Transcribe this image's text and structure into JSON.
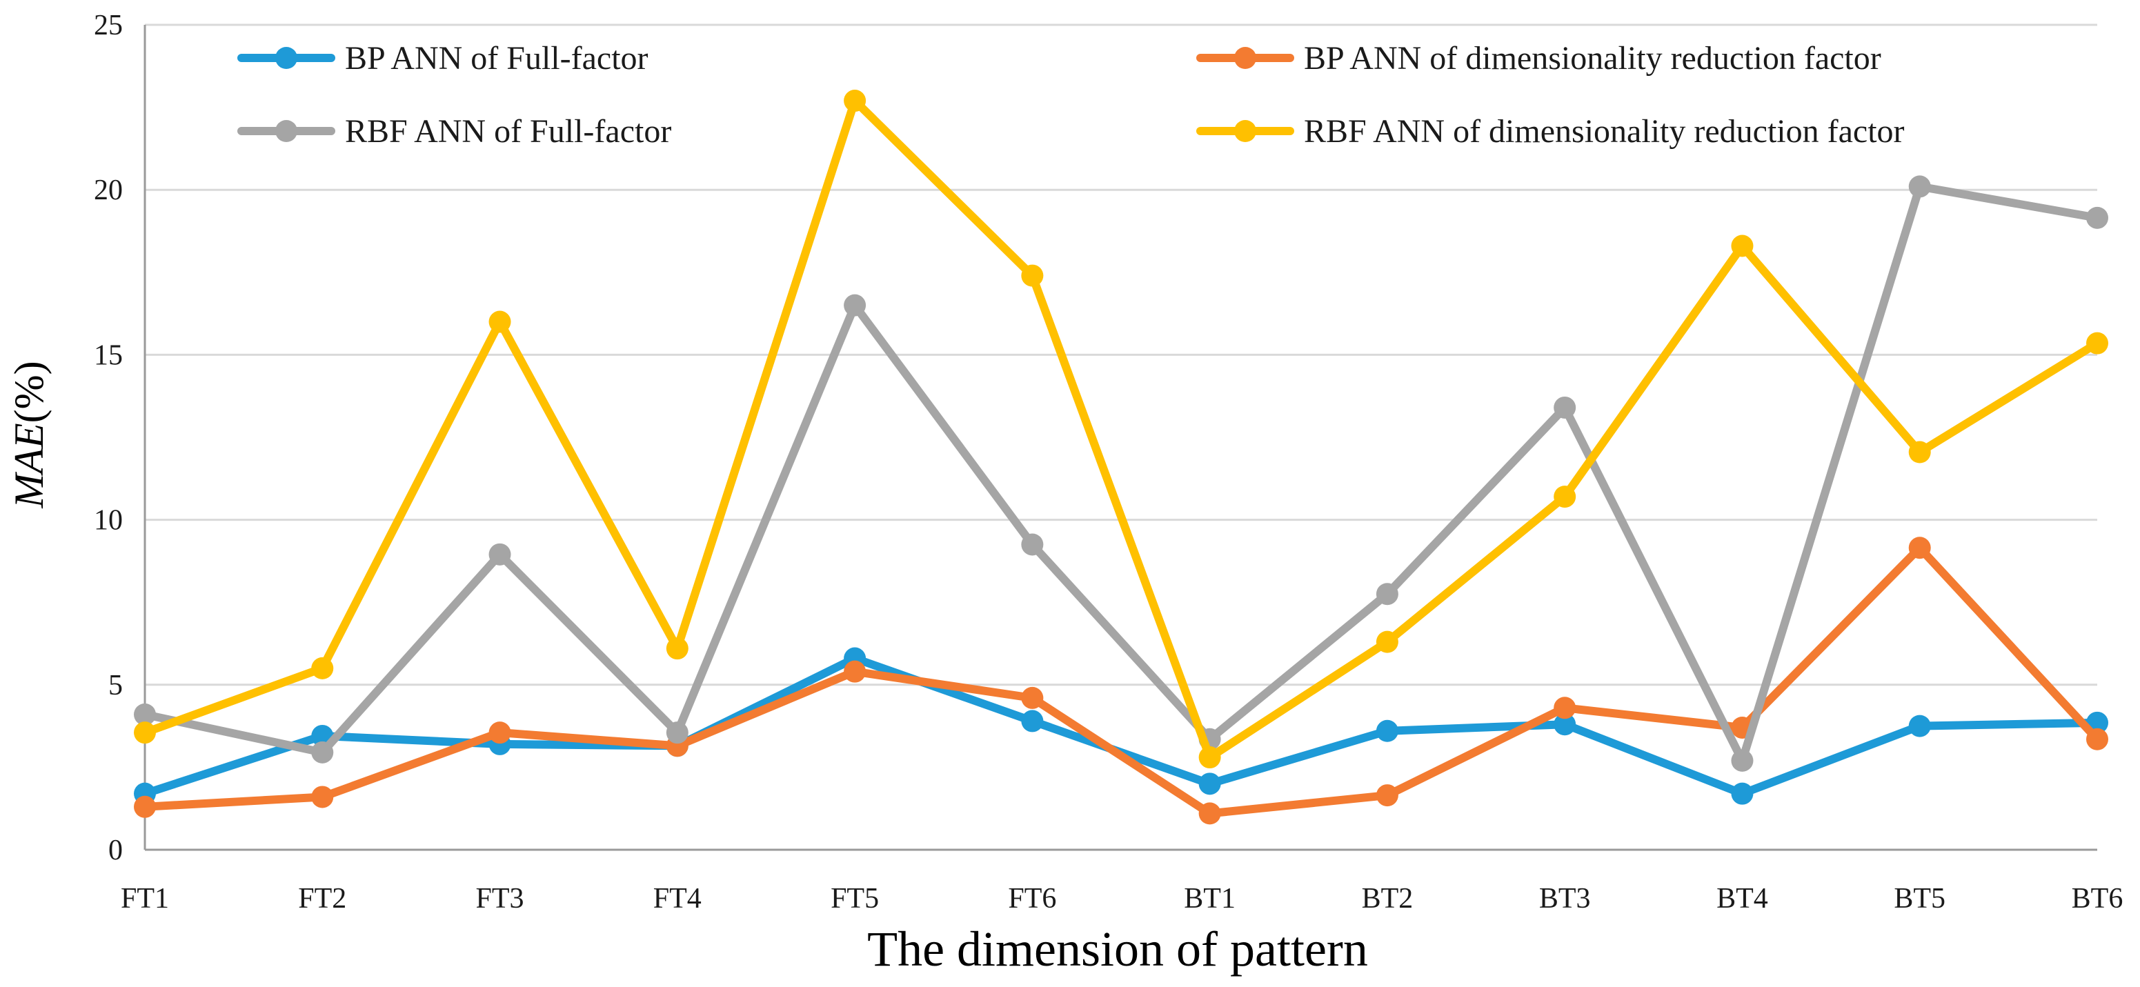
{
  "chart_data": {
    "type": "line",
    "title": "",
    "xlabel": "The dimension of pattern",
    "ylabel": {
      "italic": "MAE",
      "rest": "(%)"
    },
    "categories": [
      "FT1",
      "FT2",
      "FT3",
      "FT4",
      "FT5",
      "FT6",
      "BT1",
      "BT2",
      "BT3",
      "BT4",
      "BT5",
      "BT6"
    ],
    "ylim": [
      0,
      25
    ],
    "yticks": [
      0,
      5,
      10,
      15,
      20,
      25
    ],
    "grid": true,
    "legend_position": "top",
    "series": [
      {
        "name": "BP ANN of Full-factor",
        "color": "#1E9AD7",
        "values": [
          1.7,
          3.45,
          3.2,
          3.15,
          5.8,
          3.9,
          2.0,
          3.6,
          3.8,
          1.7,
          3.75,
          3.85
        ]
      },
      {
        "name": "BP ANN of dimensionality reduction factor",
        "color": "#F37B31",
        "values": [
          1.3,
          1.6,
          3.55,
          3.15,
          5.4,
          4.6,
          1.1,
          1.65,
          4.3,
          3.7,
          9.15,
          3.35
        ]
      },
      {
        "name": "RBF ANN of Full-factor",
        "color": "#A5A5A5",
        "values": [
          4.1,
          2.95,
          8.95,
          3.55,
          16.5,
          9.25,
          3.35,
          7.75,
          13.4,
          2.7,
          20.1,
          19.15
        ]
      },
      {
        "name": "RBF ANN of dimensionality reduction factor",
        "color": "#FFC000",
        "values": [
          3.55,
          5.5,
          16.0,
          6.1,
          22.7,
          17.4,
          2.8,
          6.3,
          10.7,
          18.3,
          12.05,
          15.35
        ]
      }
    ]
  }
}
